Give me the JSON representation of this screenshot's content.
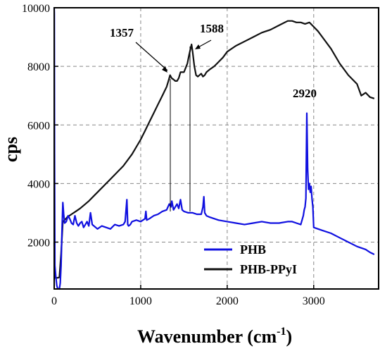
{
  "chart_data": {
    "type": "line",
    "xlabel": "Wavenumber (cm",
    "xlabel_sup": "-1",
    "xlabel_close": ")",
    "ylabel": "cps",
    "xlim": [
      0,
      3750
    ],
    "ylim": [
      400,
      10000
    ],
    "x_ticks": [
      0,
      1000,
      2000,
      3000
    ],
    "y_ticks": [
      2000,
      4000,
      6000,
      8000,
      10000
    ],
    "grid": true,
    "legend_position": "bottom-center",
    "colors": {
      "PHB": "#1010e0",
      "PHB-PPyI": "#111111"
    },
    "series": [
      {
        "name": "PHB",
        "x": [
          0,
          2,
          4,
          8,
          20,
          30,
          40,
          60,
          70,
          80,
          90,
          100,
          110,
          120,
          140,
          160,
          180,
          200,
          220,
          240,
          260,
          280,
          300,
          320,
          340,
          360,
          380,
          400,
          420,
          440,
          460,
          480,
          500,
          550,
          600,
          650,
          700,
          750,
          800,
          820,
          840,
          850,
          860,
          880,
          900,
          950,
          1000,
          1050,
          1060,
          1070,
          1100,
          1150,
          1200,
          1250,
          1300,
          1330,
          1350,
          1360,
          1380,
          1400,
          1420,
          1440,
          1460,
          1480,
          1500,
          1550,
          1600,
          1650,
          1700,
          1720,
          1730,
          1740,
          1760,
          1800,
          1900,
          2000,
          2100,
          2200,
          2300,
          2400,
          2500,
          2600,
          2700,
          2750,
          2800,
          2850,
          2860,
          2880,
          2890,
          2900,
          2910,
          2920,
          2930,
          2940,
          2950,
          2960,
          2970,
          2980,
          2990,
          3000,
          3050,
          3100,
          3200,
          3300,
          3400,
          3500,
          3600,
          3650,
          3700
        ],
        "y": [
          10000,
          9800,
          5000,
          1200,
          780,
          520,
          420,
          400,
          600,
          1200,
          2400,
          3350,
          2950,
          2650,
          2700,
          2900,
          2800,
          2650,
          2600,
          2900,
          2650,
          2550,
          2650,
          2700,
          2500,
          2600,
          2700,
          2550,
          3000,
          2600,
          2550,
          2500,
          2450,
          2550,
          2500,
          2450,
          2600,
          2550,
          2600,
          2700,
          3450,
          2600,
          2550,
          2600,
          2700,
          2750,
          2700,
          2800,
          3050,
          2750,
          2800,
          2900,
          2950,
          3050,
          3100,
          3300,
          3200,
          3400,
          3100,
          3200,
          3300,
          3150,
          3450,
          3100,
          3050,
          3000,
          3000,
          2950,
          2950,
          3200,
          3550,
          3000,
          2900,
          2850,
          2750,
          2700,
          2650,
          2600,
          2650,
          2700,
          2650,
          2650,
          2700,
          2700,
          2650,
          2600,
          2700,
          2900,
          3100,
          3200,
          3500,
          6400,
          4500,
          3800,
          4000,
          3700,
          3900,
          3500,
          3200,
          2500,
          2450,
          2400,
          2300,
          2150,
          2000,
          1850,
          1750,
          1650,
          1580
        ]
      },
      {
        "name": "PHB-PPyI",
        "x": [
          0,
          5,
          10,
          20,
          40,
          60,
          80,
          100,
          120,
          150,
          200,
          250,
          300,
          400,
          500,
          600,
          700,
          800,
          900,
          1000,
          1050,
          1100,
          1150,
          1200,
          1250,
          1300,
          1320,
          1340,
          1357,
          1380,
          1400,
          1420,
          1440,
          1460,
          1480,
          1500,
          1520,
          1540,
          1560,
          1588,
          1600,
          1620,
          1640,
          1660,
          1680,
          1700,
          1720,
          1740,
          1760,
          1800,
          1850,
          1900,
          1950,
          2000,
          2100,
          2200,
          2300,
          2400,
          2500,
          2600,
          2700,
          2750,
          2800,
          2850,
          2900,
          2950,
          3000,
          3050,
          3100,
          3200,
          3300,
          3400,
          3500,
          3550,
          3600,
          3650,
          3700
        ],
        "y": [
          2000,
          800,
          780,
          780,
          780,
          800,
          1600,
          2700,
          2750,
          2850,
          2950,
          3050,
          3150,
          3400,
          3700,
          4000,
          4300,
          4600,
          5000,
          5500,
          5800,
          6100,
          6400,
          6700,
          7000,
          7300,
          7500,
          7700,
          7600,
          7550,
          7500,
          7500,
          7600,
          7800,
          7800,
          7800,
          7950,
          8100,
          8400,
          8750,
          8500,
          8000,
          7700,
          7650,
          7700,
          7750,
          7650,
          7700,
          7800,
          7900,
          8000,
          8150,
          8300,
          8500,
          8700,
          8850,
          9000,
          9150,
          9250,
          9400,
          9550,
          9550,
          9500,
          9500,
          9450,
          9500,
          9350,
          9200,
          9000,
          8600,
          8100,
          7700,
          7400,
          7000,
          7100,
          6950,
          6900
        ]
      }
    ],
    "annotations": [
      {
        "text": "1357",
        "x": 1357,
        "y": 7600
      },
      {
        "text": "1588",
        "x": 1588,
        "y": 8750
      },
      {
        "text": "2920",
        "x": 2920,
        "y": 6400
      }
    ]
  }
}
